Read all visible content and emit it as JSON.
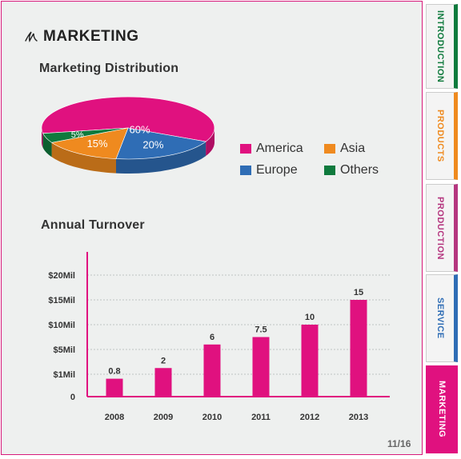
{
  "page": {
    "title": "MARKETING",
    "pager": "11/16"
  },
  "distribution": {
    "title": "Marketing Distribution",
    "slices": [
      {
        "name": "America",
        "value": 60,
        "label": "60%",
        "color": "#e0117f"
      },
      {
        "name": "Europe",
        "value": 20,
        "label": "20%",
        "color": "#2f6db5"
      },
      {
        "name": "Asia",
        "value": 15,
        "label": "15%",
        "color": "#ef8a1f"
      },
      {
        "name": "Others",
        "value": 5,
        "label": "5%",
        "color": "#0f7a3d"
      }
    ]
  },
  "chart_data": [
    {
      "type": "pie",
      "title": "Marketing Distribution",
      "categories": [
        "America",
        "Europe",
        "Asia",
        "Others"
      ],
      "values": [
        60,
        20,
        15,
        5
      ],
      "legend": "right"
    },
    {
      "type": "bar",
      "title": "Annual Turnover",
      "categories": [
        "2008",
        "2009",
        "2010",
        "2011",
        "2012",
        "2013"
      ],
      "values": [
        0.8,
        2,
        6,
        7.5,
        10,
        15
      ],
      "data_labels": [
        "0.8",
        "2",
        "6",
        "7.5",
        "10",
        "15"
      ],
      "yticks": [
        {
          "label": "0",
          "value": 0
        },
        {
          "label": "$1Mil",
          "value": 1
        },
        {
          "label": "$5Mil",
          "value": 5
        },
        {
          "label": "$10Mil",
          "value": 10
        },
        {
          "label": "$15Mil",
          "value": 15
        },
        {
          "label": "$20Mil",
          "value": 20
        }
      ],
      "grid": true,
      "color": "#e0117f"
    }
  ],
  "turnover": {
    "title": "Annual Turnover"
  },
  "tabs": [
    {
      "label": "INTRODUCTION",
      "color": "#0f7a3d",
      "active": false
    },
    {
      "label": "PRODUCTS",
      "color": "#ef8a1f",
      "active": false
    },
    {
      "label": "PRODUCTION",
      "color": "#b5367f",
      "active": false
    },
    {
      "label": "SERVICE",
      "color": "#2f6db5",
      "active": false
    },
    {
      "label": "MARKETING",
      "color": "#e0117f",
      "active": true
    }
  ]
}
